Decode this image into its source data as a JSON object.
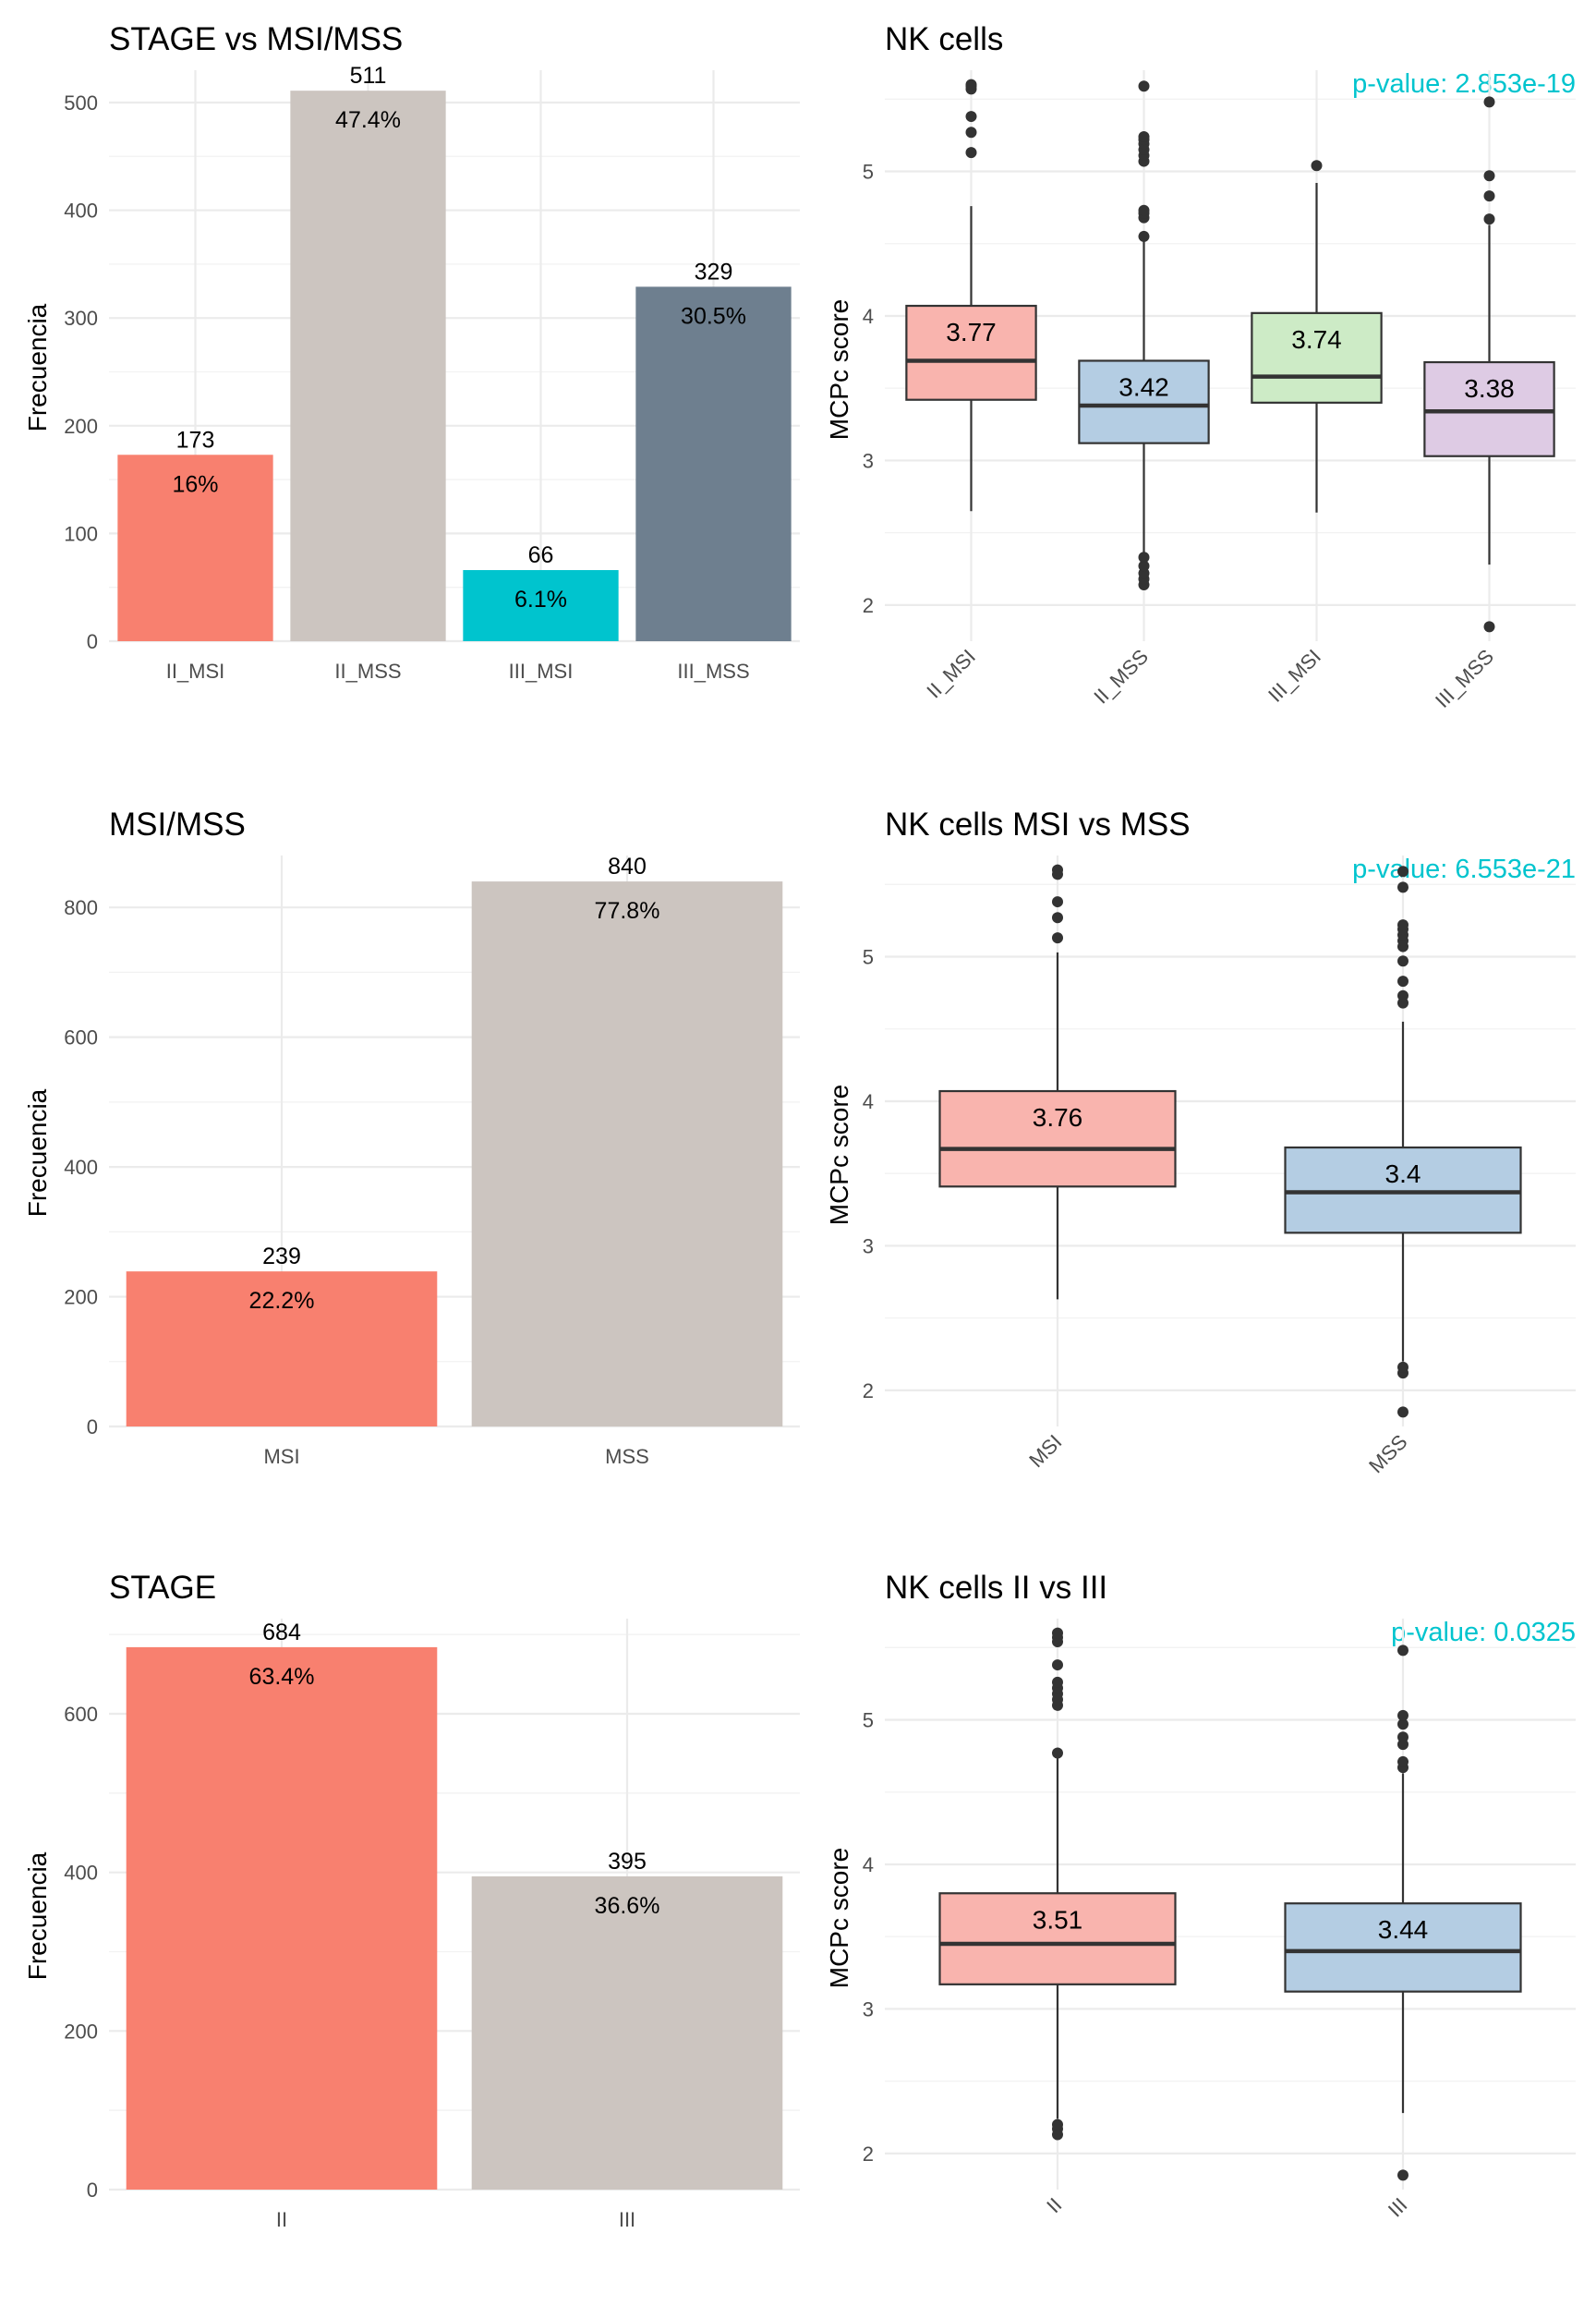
{
  "colors": {
    "bar_palette": [
      "#F8806F",
      "#CCC5C0",
      "#00C4CE",
      "#6E7F8F"
    ],
    "box_palette": [
      "#F9B4AE",
      "#B4CDE3",
      "#CDEBC6",
      "#DECBE4"
    ],
    "pvalue": "#00C4CE"
  },
  "chart_data": [
    {
      "type": "bar",
      "title": "STAGE vs MSI/MSS",
      "ylabel": "Frecuencia",
      "xlabel": "",
      "categories": [
        "II_MSI",
        "II_MSS",
        "III_MSI",
        "III_MSS"
      ],
      "values": [
        173,
        511,
        66,
        329
      ],
      "percent_labels": [
        "16%",
        "47.4%",
        "6.1%",
        "30.5%"
      ],
      "count_labels": [
        "173",
        "511",
        "66",
        "329"
      ],
      "ylim": [
        0,
        530
      ],
      "yticks": [
        0,
        100,
        200,
        300,
        400,
        500
      ],
      "ytick_labels": [
        "0",
        "100",
        "200",
        "300",
        "400",
        "500"
      ],
      "grid": true
    },
    {
      "type": "box",
      "title": "NK cells",
      "ylabel": "MCPc score",
      "xlabel": "",
      "pvalue": "p-value: 2.853e-19",
      "categories": [
        "II_MSI",
        "II_MSS",
        "III_MSI",
        "III_MSS"
      ],
      "boxes": [
        {
          "q1": 3.42,
          "median": 3.69,
          "q3": 4.07,
          "whisker_low": 2.65,
          "whisker_high": 4.76,
          "mean_label": "3.77",
          "outliers": [
            5.13,
            5.27,
            5.38,
            5.57,
            5.59,
            5.6
          ]
        },
        {
          "q1": 3.12,
          "median": 3.38,
          "q3": 3.69,
          "whisker_low": 2.36,
          "whisker_high": 4.53,
          "mean_label": "3.42",
          "outliers": [
            2.14,
            2.18,
            2.22,
            2.27,
            2.33,
            4.55,
            4.68,
            4.71,
            4.73,
            5.07,
            5.11,
            5.15,
            5.19,
            5.22,
            5.24,
            5.59
          ]
        },
        {
          "q1": 3.4,
          "median": 3.58,
          "q3": 4.02,
          "whisker_low": 2.64,
          "whisker_high": 4.92,
          "mean_label": "3.74",
          "outliers": [
            5.04
          ]
        },
        {
          "q1": 3.03,
          "median": 3.34,
          "q3": 3.68,
          "whisker_low": 2.28,
          "whisker_high": 4.63,
          "mean_label": "3.38",
          "outliers": [
            1.85,
            4.67,
            4.83,
            4.97,
            5.48
          ]
        }
      ],
      "ylim": [
        1.75,
        5.7
      ],
      "yticks": [
        2,
        3,
        4,
        5
      ],
      "ytick_labels": [
        "2",
        "3",
        "4",
        "5"
      ],
      "grid": true
    },
    {
      "type": "bar",
      "title": "MSI/MSS",
      "ylabel": "Frecuencia",
      "xlabel": "",
      "categories": [
        "MSI",
        "MSS"
      ],
      "values": [
        239,
        840
      ],
      "percent_labels": [
        "22.2%",
        "77.8%"
      ],
      "count_labels": [
        "239",
        "840"
      ],
      "ylim": [
        0,
        880
      ],
      "yticks": [
        0,
        200,
        400,
        600,
        800
      ],
      "ytick_labels": [
        "0",
        "200",
        "400",
        "600",
        "800"
      ],
      "grid": true
    },
    {
      "type": "box",
      "title": "NK cells MSI vs MSS",
      "ylabel": "MCPc score",
      "xlabel": "",
      "pvalue": "p-value: 6.553e-21",
      "categories": [
        "MSI",
        "MSS"
      ],
      "boxes": [
        {
          "q1": 3.41,
          "median": 3.67,
          "q3": 4.07,
          "whisker_low": 2.63,
          "whisker_high": 5.03,
          "mean_label": "3.76",
          "outliers": [
            5.13,
            5.27,
            5.38,
            5.57,
            5.6
          ]
        },
        {
          "q1": 3.09,
          "median": 3.37,
          "q3": 3.68,
          "whisker_low": 2.2,
          "whisker_high": 4.55,
          "mean_label": "3.4",
          "outliers": [
            1.85,
            2.12,
            2.16,
            4.68,
            4.73,
            4.83,
            4.97,
            5.07,
            5.11,
            5.15,
            5.19,
            5.22,
            5.48,
            5.59
          ]
        }
      ],
      "ylim": [
        1.75,
        5.7
      ],
      "yticks": [
        2,
        3,
        4,
        5
      ],
      "ytick_labels": [
        "2",
        "3",
        "4",
        "5"
      ],
      "grid": true
    },
    {
      "type": "bar",
      "title": "STAGE",
      "ylabel": "Frecuencia",
      "xlabel": "",
      "categories": [
        "II",
        "III"
      ],
      "values": [
        684,
        395
      ],
      "percent_labels": [
        "63.4%",
        "36.6%"
      ],
      "count_labels": [
        "684",
        "395"
      ],
      "ylim": [
        0,
        720
      ],
      "yticks": [
        0,
        200,
        400,
        600
      ],
      "ytick_labels": [
        "0",
        "200",
        "400",
        "600"
      ],
      "grid": true
    },
    {
      "type": "box",
      "title": "NK cells II vs III",
      "ylabel": "MCPc score",
      "xlabel": "",
      "pvalue": "p-value: 0.0325",
      "categories": [
        "II",
        "III"
      ],
      "boxes": [
        {
          "q1": 3.17,
          "median": 3.45,
          "q3": 3.8,
          "whisker_low": 2.24,
          "whisker_high": 4.75,
          "mean_label": "3.51",
          "outliers": [
            2.13,
            2.17,
            2.2,
            4.77,
            5.1,
            5.14,
            5.18,
            5.22,
            5.26,
            5.38,
            5.54,
            5.57,
            5.6
          ]
        },
        {
          "q1": 3.12,
          "median": 3.4,
          "q3": 3.73,
          "whisker_low": 2.28,
          "whisker_high": 4.63,
          "mean_label": "3.44",
          "outliers": [
            1.85,
            4.67,
            4.71,
            4.83,
            4.88,
            4.97,
            5.03,
            5.48
          ]
        }
      ],
      "ylim": [
        1.75,
        5.7
      ],
      "yticks": [
        2,
        3,
        4,
        5
      ],
      "ytick_labels": [
        "2",
        "3",
        "4",
        "5"
      ],
      "grid": true
    }
  ]
}
